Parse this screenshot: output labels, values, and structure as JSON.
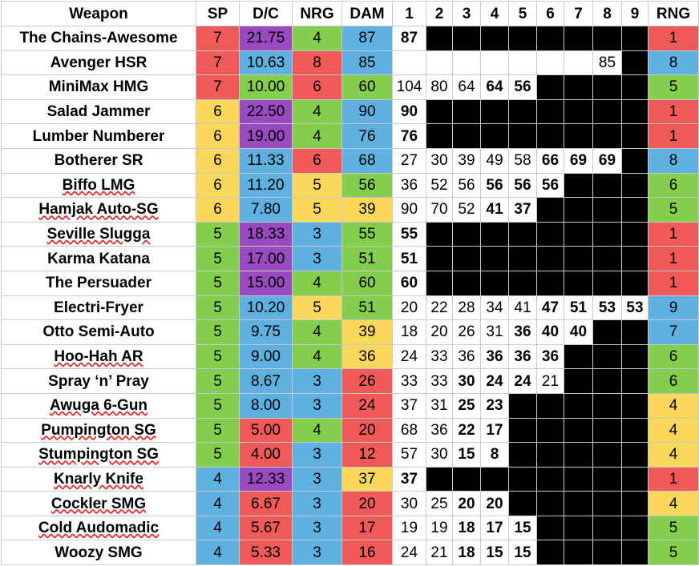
{
  "table": {
    "headers": [
      "Weapon",
      "SP",
      "D/C",
      "NRG",
      "DAM",
      "1",
      "2",
      "3",
      "4",
      "5",
      "6",
      "7",
      "8",
      "9",
      "RNG"
    ],
    "colors": {
      "red": "#f25a59",
      "yellow": "#fbd75b",
      "green": "#83cf4d",
      "blue": "#5eb0e0",
      "purple": "#9a4ac0",
      "black": "#000000"
    },
    "rows": [
      {
        "name": "The Chains-Awesome",
        "underlined": false,
        "sp": "7",
        "sp_color": "red",
        "dc": "21.75",
        "dc_color": "purple",
        "nrg": "4",
        "nrg_color": "green",
        "dam": "87",
        "dam_color": "blue",
        "shots": [
          {
            "v": "87",
            "b": true
          },
          {
            "k": 1
          },
          {
            "k": 1
          },
          {
            "k": 1
          },
          {
            "k": 1
          },
          {
            "k": 1
          },
          {
            "k": 1
          },
          {
            "k": 1
          },
          {
            "k": 1
          }
        ],
        "rng": "1",
        "rng_color": "red"
      },
      {
        "name": "Avenger HSR",
        "underlined": false,
        "sp": "7",
        "sp_color": "red",
        "dc": "10.63",
        "dc_color": "blue",
        "nrg": "8",
        "nrg_color": "red",
        "dam": "85",
        "dam_color": "blue",
        "shots": [
          {
            "v": ""
          },
          {
            "v": ""
          },
          {
            "v": ""
          },
          {
            "v": ""
          },
          {
            "v": ""
          },
          {
            "v": ""
          },
          {
            "v": ""
          },
          {
            "v": "85",
            "b": false
          },
          {
            "k": 1
          }
        ],
        "rng": "8",
        "rng_color": "blue"
      },
      {
        "name": "MiniMax HMG",
        "underlined": false,
        "sp": "7",
        "sp_color": "red",
        "dc": "10.00",
        "dc_color": "green",
        "nrg": "6",
        "nrg_color": "red",
        "dam": "60",
        "dam_color": "green",
        "shots": [
          {
            "v": "104"
          },
          {
            "v": "80"
          },
          {
            "v": "64"
          },
          {
            "v": "64",
            "b": true
          },
          {
            "v": "56",
            "b": true
          },
          {
            "k": 1
          },
          {
            "k": 1
          },
          {
            "k": 1
          },
          {
            "k": 1
          }
        ],
        "rng": "5",
        "rng_color": "green"
      },
      {
        "name": "Salad Jammer",
        "underlined": false,
        "sp": "6",
        "sp_color": "yellow",
        "dc": "22.50",
        "dc_color": "purple",
        "nrg": "4",
        "nrg_color": "green",
        "dam": "90",
        "dam_color": "blue",
        "shots": [
          {
            "v": "90",
            "b": true
          },
          {
            "k": 1
          },
          {
            "k": 1
          },
          {
            "k": 1
          },
          {
            "k": 1
          },
          {
            "k": 1
          },
          {
            "k": 1
          },
          {
            "k": 1
          },
          {
            "k": 1
          }
        ],
        "rng": "1",
        "rng_color": "red"
      },
      {
        "name": "Lumber Numberer",
        "underlined": false,
        "sp": "6",
        "sp_color": "yellow",
        "dc": "19.00",
        "dc_color": "purple",
        "nrg": "4",
        "nrg_color": "green",
        "dam": "76",
        "dam_color": "blue",
        "shots": [
          {
            "v": "76",
            "b": true
          },
          {
            "k": 1
          },
          {
            "k": 1
          },
          {
            "k": 1
          },
          {
            "k": 1
          },
          {
            "k": 1
          },
          {
            "k": 1
          },
          {
            "k": 1
          },
          {
            "k": 1
          }
        ],
        "rng": "1",
        "rng_color": "red"
      },
      {
        "name": "Botherer SR",
        "underlined": false,
        "sp": "6",
        "sp_color": "yellow",
        "dc": "11.33",
        "dc_color": "blue",
        "nrg": "6",
        "nrg_color": "red",
        "dam": "68",
        "dam_color": "blue",
        "shots": [
          {
            "v": "27"
          },
          {
            "v": "30"
          },
          {
            "v": "39"
          },
          {
            "v": "49"
          },
          {
            "v": "58"
          },
          {
            "v": "66",
            "b": true
          },
          {
            "v": "69",
            "b": true
          },
          {
            "v": "69",
            "b": true
          },
          {
            "k": 1
          }
        ],
        "rng": "8",
        "rng_color": "blue"
      },
      {
        "name": "Biffo LMG",
        "underlined": true,
        "sp": "6",
        "sp_color": "yellow",
        "dc": "11.20",
        "dc_color": "blue",
        "nrg": "5",
        "nrg_color": "yellow",
        "dam": "56",
        "dam_color": "green",
        "shots": [
          {
            "v": "36"
          },
          {
            "v": "52"
          },
          {
            "v": "56"
          },
          {
            "v": "56",
            "b": true
          },
          {
            "v": "56",
            "b": true
          },
          {
            "v": "56",
            "b": true
          },
          {
            "k": 1
          },
          {
            "k": 1
          },
          {
            "k": 1
          }
        ],
        "rng": "6",
        "rng_color": "green"
      },
      {
        "name": "Hamjak Auto-SG",
        "underlined": true,
        "sp": "6",
        "sp_color": "yellow",
        "dc": "7.80",
        "dc_color": "blue",
        "nrg": "5",
        "nrg_color": "yellow",
        "dam": "39",
        "dam_color": "yellow",
        "shots": [
          {
            "v": "90"
          },
          {
            "v": "70"
          },
          {
            "v": "52"
          },
          {
            "v": "41",
            "b": true
          },
          {
            "v": "37",
            "b": true
          },
          {
            "k": 1
          },
          {
            "k": 1
          },
          {
            "k": 1
          },
          {
            "k": 1
          }
        ],
        "rng": "5",
        "rng_color": "green"
      },
      {
        "name": "Seville Slugga",
        "underlined": true,
        "sp": "5",
        "sp_color": "green",
        "dc": "18.33",
        "dc_color": "purple",
        "nrg": "3",
        "nrg_color": "blue",
        "dam": "55",
        "dam_color": "green",
        "shots": [
          {
            "v": "55",
            "b": true
          },
          {
            "k": 1
          },
          {
            "k": 1
          },
          {
            "k": 1
          },
          {
            "k": 1
          },
          {
            "k": 1
          },
          {
            "k": 1
          },
          {
            "k": 1
          },
          {
            "k": 1
          }
        ],
        "rng": "1",
        "rng_color": "red"
      },
      {
        "name": "Karma Katana",
        "underlined": false,
        "sp": "5",
        "sp_color": "green",
        "dc": "17.00",
        "dc_color": "purple",
        "nrg": "3",
        "nrg_color": "blue",
        "dam": "51",
        "dam_color": "green",
        "shots": [
          {
            "v": "51",
            "b": true
          },
          {
            "k": 1
          },
          {
            "k": 1
          },
          {
            "k": 1
          },
          {
            "k": 1
          },
          {
            "k": 1
          },
          {
            "k": 1
          },
          {
            "k": 1
          },
          {
            "k": 1
          }
        ],
        "rng": "1",
        "rng_color": "red"
      },
      {
        "name": "The Persuader",
        "underlined": false,
        "sp": "5",
        "sp_color": "green",
        "dc": "15.00",
        "dc_color": "purple",
        "nrg": "4",
        "nrg_color": "green",
        "dam": "60",
        "dam_color": "green",
        "shots": [
          {
            "v": "60",
            "b": true
          },
          {
            "k": 1
          },
          {
            "k": 1
          },
          {
            "k": 1
          },
          {
            "k": 1
          },
          {
            "k": 1
          },
          {
            "k": 1
          },
          {
            "k": 1
          },
          {
            "k": 1
          }
        ],
        "rng": "1",
        "rng_color": "red"
      },
      {
        "name": "Electri-Fryer",
        "underlined": false,
        "sp": "5",
        "sp_color": "green",
        "dc": "10.20",
        "dc_color": "blue",
        "nrg": "5",
        "nrg_color": "yellow",
        "dam": "51",
        "dam_color": "green",
        "shots": [
          {
            "v": "20"
          },
          {
            "v": "22"
          },
          {
            "v": "28"
          },
          {
            "v": "34"
          },
          {
            "v": "41"
          },
          {
            "v": "47",
            "b": true
          },
          {
            "v": "51",
            "b": true
          },
          {
            "v": "53",
            "b": true
          },
          {
            "v": "53",
            "b": true
          }
        ],
        "rng": "9",
        "rng_color": "blue"
      },
      {
        "name": "Otto Semi-Auto",
        "underlined": false,
        "sp": "5",
        "sp_color": "green",
        "dc": "9.75",
        "dc_color": "blue",
        "nrg": "4",
        "nrg_color": "green",
        "dam": "39",
        "dam_color": "yellow",
        "shots": [
          {
            "v": "18"
          },
          {
            "v": "20"
          },
          {
            "v": "26"
          },
          {
            "v": "31"
          },
          {
            "v": "36",
            "b": true
          },
          {
            "v": "40",
            "b": true
          },
          {
            "v": "40",
            "b": true
          },
          {
            "k": 1
          },
          {
            "k": 1
          }
        ],
        "rng": "7",
        "rng_color": "blue"
      },
      {
        "name": "Hoo-Hah AR",
        "underlined": true,
        "sp": "5",
        "sp_color": "green",
        "dc": "9.00",
        "dc_color": "blue",
        "nrg": "4",
        "nrg_color": "green",
        "dam": "36",
        "dam_color": "yellow",
        "shots": [
          {
            "v": "24"
          },
          {
            "v": "33"
          },
          {
            "v": "36"
          },
          {
            "v": "36",
            "b": true
          },
          {
            "v": "36",
            "b": true
          },
          {
            "v": "36",
            "b": true
          },
          {
            "k": 1
          },
          {
            "k": 1
          },
          {
            "k": 1
          }
        ],
        "rng": "6",
        "rng_color": "green"
      },
      {
        "name": "Spray ‘n’ Pray",
        "underlined": false,
        "sp": "5",
        "sp_color": "green",
        "dc": "8.67",
        "dc_color": "blue",
        "nrg": "3",
        "nrg_color": "blue",
        "dam": "26",
        "dam_color": "red",
        "shots": [
          {
            "v": "33"
          },
          {
            "v": "33"
          },
          {
            "v": "30",
            "b": true
          },
          {
            "v": "24",
            "b": true
          },
          {
            "v": "24",
            "b": true
          },
          {
            "v": "21"
          },
          {
            "k": 1
          },
          {
            "k": 1
          },
          {
            "k": 1
          }
        ],
        "rng": "6",
        "rng_color": "green"
      },
      {
        "name": "Awuga 6-Gun",
        "underlined": true,
        "sp": "5",
        "sp_color": "green",
        "dc": "8.00",
        "dc_color": "blue",
        "nrg": "3",
        "nrg_color": "blue",
        "dam": "24",
        "dam_color": "red",
        "shots": [
          {
            "v": "37"
          },
          {
            "v": "31"
          },
          {
            "v": "25",
            "b": true
          },
          {
            "v": "23",
            "b": true
          },
          {
            "k": 1
          },
          {
            "k": 1
          },
          {
            "k": 1
          },
          {
            "k": 1
          },
          {
            "k": 1
          }
        ],
        "rng": "4",
        "rng_color": "yellow"
      },
      {
        "name": "Pumpington SG",
        "underlined": true,
        "sp": "5",
        "sp_color": "green",
        "dc": "5.00",
        "dc_color": "red",
        "nrg": "4",
        "nrg_color": "green",
        "dam": "20",
        "dam_color": "red",
        "shots": [
          {
            "v": "68"
          },
          {
            "v": "36"
          },
          {
            "v": "22",
            "b": true
          },
          {
            "v": "17",
            "b": true
          },
          {
            "k": 1
          },
          {
            "k": 1
          },
          {
            "k": 1
          },
          {
            "k": 1
          },
          {
            "k": 1
          }
        ],
        "rng": "4",
        "rng_color": "yellow"
      },
      {
        "name": "Stumpington SG",
        "underlined": true,
        "sp": "5",
        "sp_color": "green",
        "dc": "4.00",
        "dc_color": "red",
        "nrg": "3",
        "nrg_color": "blue",
        "dam": "12",
        "dam_color": "red",
        "shots": [
          {
            "v": "57"
          },
          {
            "v": "30"
          },
          {
            "v": "15",
            "b": true
          },
          {
            "v": "8",
            "b": true
          },
          {
            "k": 1
          },
          {
            "k": 1
          },
          {
            "k": 1
          },
          {
            "k": 1
          },
          {
            "k": 1
          }
        ],
        "rng": "4",
        "rng_color": "yellow"
      },
      {
        "name": "Knarly Knife",
        "underlined": true,
        "sp": "4",
        "sp_color": "blue",
        "dc": "12.33",
        "dc_color": "purple",
        "nrg": "3",
        "nrg_color": "blue",
        "dam": "37",
        "dam_color": "yellow",
        "shots": [
          {
            "v": "37",
            "b": true
          },
          {
            "k": 1
          },
          {
            "k": 1
          },
          {
            "k": 1
          },
          {
            "k": 1
          },
          {
            "k": 1
          },
          {
            "k": 1
          },
          {
            "k": 1
          },
          {
            "k": 1
          }
        ],
        "rng": "1",
        "rng_color": "red"
      },
      {
        "name": "Cockler SMG",
        "underlined": true,
        "sp": "4",
        "sp_color": "blue",
        "dc": "6.67",
        "dc_color": "red",
        "nrg": "3",
        "nrg_color": "blue",
        "dam": "20",
        "dam_color": "red",
        "shots": [
          {
            "v": "30"
          },
          {
            "v": "25"
          },
          {
            "v": "20",
            "b": true
          },
          {
            "v": "20",
            "b": true
          },
          {
            "k": 1
          },
          {
            "k": 1
          },
          {
            "k": 1
          },
          {
            "k": 1
          },
          {
            "k": 1
          }
        ],
        "rng": "4",
        "rng_color": "yellow"
      },
      {
        "name": "Cold Audomadic",
        "underlined": true,
        "sp": "4",
        "sp_color": "blue",
        "dc": "5.67",
        "dc_color": "red",
        "nrg": "3",
        "nrg_color": "blue",
        "dam": "17",
        "dam_color": "red",
        "shots": [
          {
            "v": "19"
          },
          {
            "v": "19"
          },
          {
            "v": "18",
            "b": true
          },
          {
            "v": "17",
            "b": true
          },
          {
            "v": "15",
            "b": true
          },
          {
            "k": 1
          },
          {
            "k": 1
          },
          {
            "k": 1
          },
          {
            "k": 1
          }
        ],
        "rng": "5",
        "rng_color": "green"
      },
      {
        "name": "Woozy SMG",
        "underlined": false,
        "sp": "4",
        "sp_color": "blue",
        "dc": "5.33",
        "dc_color": "red",
        "nrg": "3",
        "nrg_color": "blue",
        "dam": "16",
        "dam_color": "red",
        "shots": [
          {
            "v": "24"
          },
          {
            "v": "21"
          },
          {
            "v": "18",
            "b": true
          },
          {
            "v": "15",
            "b": true
          },
          {
            "v": "15",
            "b": true
          },
          {
            "k": 1
          },
          {
            "k": 1
          },
          {
            "k": 1
          },
          {
            "k": 1
          }
        ],
        "rng": "5",
        "rng_color": "green"
      }
    ]
  }
}
